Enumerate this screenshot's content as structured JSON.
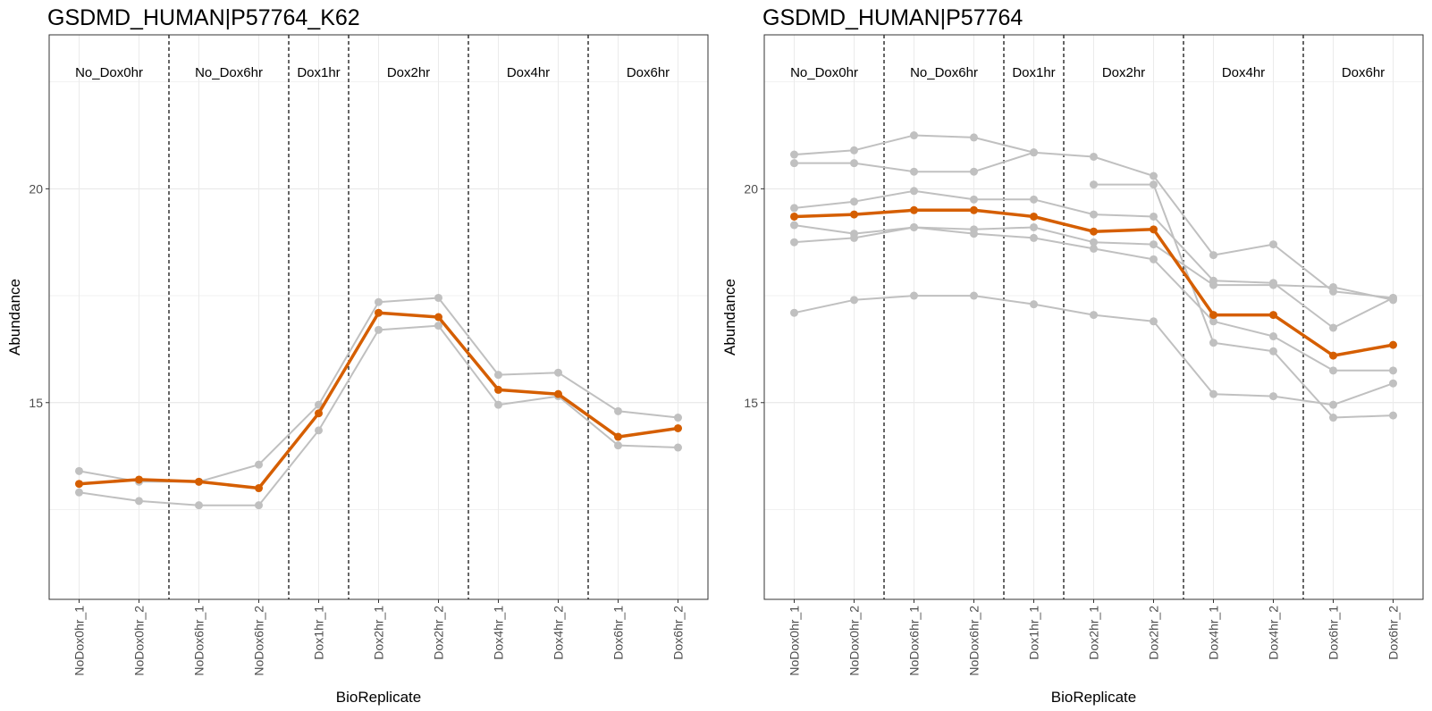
{
  "chart_data": [
    {
      "type": "line",
      "title": "GSDMD_HUMAN|P57764_K62",
      "xlabel": "BioReplicate",
      "ylabel": "Abundance",
      "ylim": [
        10.4,
        23.6
      ],
      "y_ticks": [
        15,
        20
      ],
      "grid": true,
      "categories": [
        "NoDox0hr_1",
        "NoDox0hr_2",
        "NoDox6hr_1",
        "NoDox6hr_2",
        "Dox1hr_1",
        "Dox2hr_1",
        "Dox2hr_2",
        "Dox4hr_1",
        "Dox4hr_2",
        "Dox6hr_1",
        "Dox6hr_2"
      ],
      "conditions": [
        {
          "label": "No_Dox0hr",
          "start": 0,
          "end": 1
        },
        {
          "label": "No_Dox6hr",
          "start": 2,
          "end": 3
        },
        {
          "label": "Dox1hr",
          "start": 4,
          "end": 4
        },
        {
          "label": "Dox2hr",
          "start": 5,
          "end": 6
        },
        {
          "label": "Dox4hr",
          "start": 7,
          "end": 8
        },
        {
          "label": "Dox6hr",
          "start": 9,
          "end": 10
        }
      ],
      "series": [
        {
          "role": "feature",
          "color": "#c0c0c0",
          "values": [
            13.4,
            13.15,
            13.15,
            13.55,
            14.95,
            17.35,
            17.45,
            15.65,
            15.7,
            14.8,
            14.65
          ]
        },
        {
          "role": "feature",
          "color": "#c0c0c0",
          "values": [
            12.9,
            12.7,
            12.6,
            12.6,
            14.35,
            16.7,
            16.8,
            14.95,
            15.15,
            14.0,
            13.95
          ]
        },
        {
          "role": "summary",
          "color": "#d55e00",
          "values": [
            13.1,
            13.2,
            13.15,
            13.0,
            14.75,
            17.1,
            17.0,
            15.3,
            15.2,
            14.2,
            14.4
          ]
        }
      ]
    },
    {
      "type": "line",
      "title": "GSDMD_HUMAN|P57764",
      "xlabel": "BioReplicate",
      "ylabel": "Abundance",
      "ylim": [
        10.4,
        23.6
      ],
      "y_ticks": [
        15,
        20
      ],
      "grid": true,
      "categories": [
        "NoDox0hr_1",
        "NoDox0hr_2",
        "NoDox6hr_1",
        "NoDox6hr_2",
        "Dox1hr_1",
        "Dox2hr_1",
        "Dox2hr_2",
        "Dox4hr_1",
        "Dox4hr_2",
        "Dox6hr_1",
        "Dox6hr_2"
      ],
      "conditions": [
        {
          "label": "No_Dox0hr",
          "start": 0,
          "end": 1
        },
        {
          "label": "No_Dox6hr",
          "start": 2,
          "end": 3
        },
        {
          "label": "Dox1hr",
          "start": 4,
          "end": 4
        },
        {
          "label": "Dox2hr",
          "start": 5,
          "end": 6
        },
        {
          "label": "Dox4hr",
          "start": 7,
          "end": 8
        },
        {
          "label": "Dox6hr",
          "start": 9,
          "end": 10
        }
      ],
      "series": [
        {
          "role": "feature",
          "color": "#c0c0c0",
          "values": [
            20.8,
            20.9,
            21.25,
            21.2,
            20.85,
            20.75,
            20.3,
            18.45,
            18.7,
            17.6,
            17.45
          ]
        },
        {
          "role": "feature",
          "color": "#c0c0c0",
          "values": [
            20.6,
            20.6,
            20.4,
            20.4,
            20.85,
            null,
            null,
            null,
            null,
            null,
            null
          ]
        },
        {
          "role": "feature",
          "color": "#c0c0c0",
          "values": [
            19.55,
            19.7,
            19.95,
            19.75,
            19.75,
            19.4,
            19.35,
            17.85,
            17.8,
            16.75,
            17.45
          ]
        },
        {
          "role": "feature",
          "color": "#c0c0c0",
          "values": [
            19.15,
            18.95,
            19.1,
            19.05,
            19.1,
            18.75,
            18.7,
            17.75,
            17.75,
            17.7,
            17.4
          ]
        },
        {
          "role": "feature",
          "color": "#c0c0c0",
          "values": [
            18.75,
            18.85,
            19.1,
            18.95,
            18.85,
            18.6,
            18.35,
            16.9,
            16.55,
            15.75,
            15.75
          ]
        },
        {
          "role": "feature",
          "color": "#c0c0c0",
          "values": [
            17.1,
            17.4,
            17.5,
            17.5,
            17.3,
            17.05,
            16.9,
            15.2,
            15.15,
            14.95,
            15.45
          ]
        },
        {
          "role": "feature",
          "color": "#c0c0c0",
          "values": [
            null,
            null,
            null,
            null,
            null,
            20.1,
            20.1,
            16.4,
            16.2,
            14.65,
            14.7
          ]
        },
        {
          "role": "summary",
          "color": "#d55e00",
          "values": [
            19.35,
            19.4,
            19.5,
            19.5,
            19.35,
            19.0,
            19.05,
            17.05,
            17.05,
            16.1,
            16.35
          ]
        }
      ]
    }
  ]
}
